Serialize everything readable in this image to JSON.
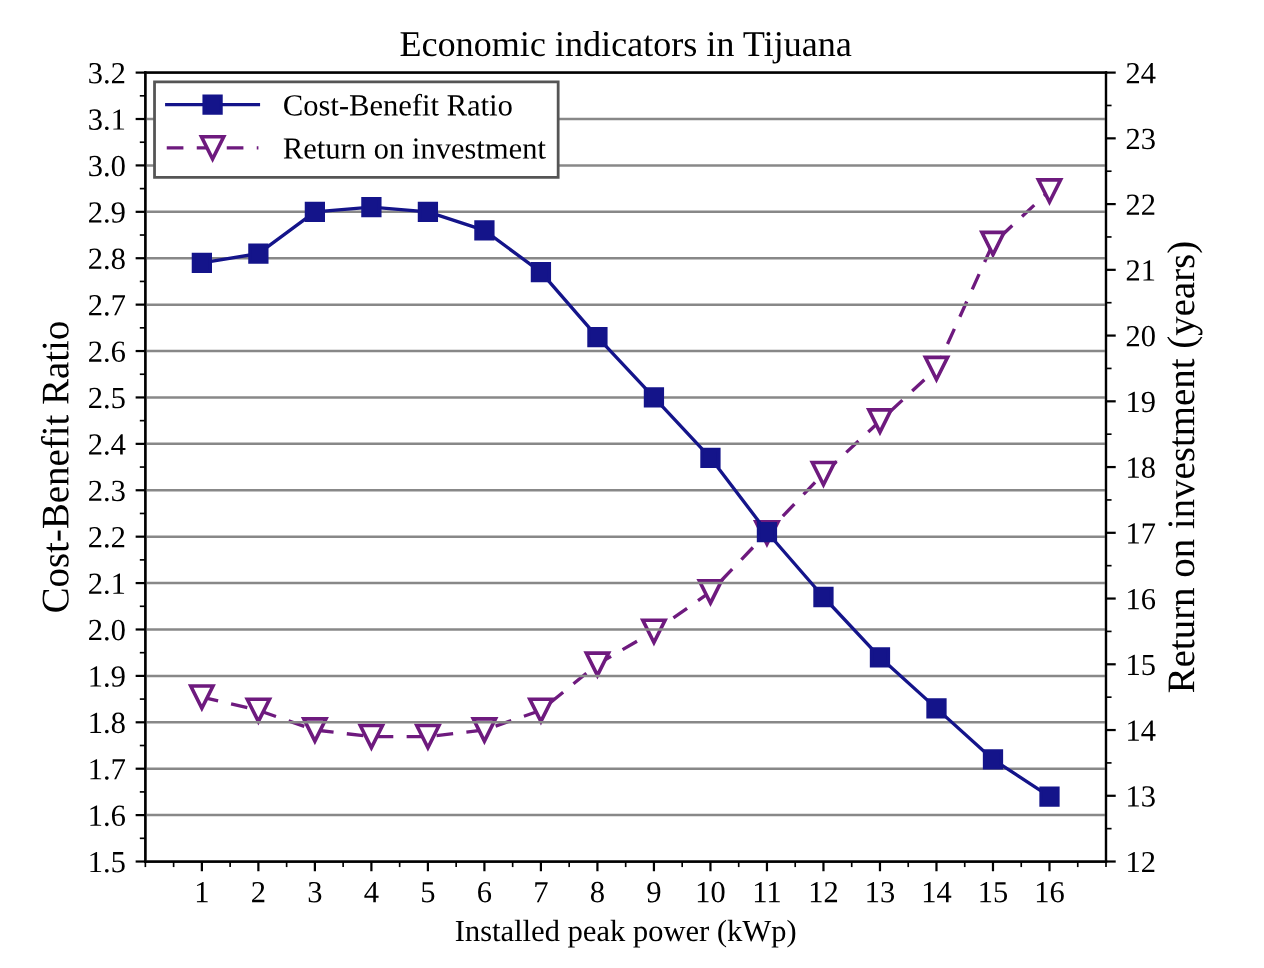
{
  "chart_data": {
    "type": "line",
    "title": "Economic indicators in Tijuana",
    "xlabel": "Installed peak power (kWp)",
    "ylabel": "Cost-Benefit Ratio",
    "y2label": "Return on investment (years)",
    "x": [
      1,
      2,
      3,
      4,
      5,
      6,
      7,
      8,
      9,
      10,
      11,
      12,
      13,
      14,
      15,
      16
    ],
    "series": [
      {
        "name": "Cost-Benefit Ratio",
        "color": "#14148a",
        "marker": "square",
        "line_style": "solid",
        "values": [
          2.79,
          2.81,
          2.9,
          2.91,
          2.9,
          2.86,
          2.77,
          2.63,
          2.5,
          2.37,
          2.21,
          2.07,
          1.94,
          1.83,
          1.72,
          1.64
        ]
      },
      {
        "name": "Return on investment",
        "color": "#6e1a7e",
        "marker": "triangle",
        "line_style": "dashed",
        "axis": "y2",
        "values": [
          14.5,
          14.3,
          14.0,
          13.9,
          13.9,
          14.0,
          14.3,
          15.0,
          15.5,
          16.1,
          17.0,
          17.9,
          18.7,
          19.5,
          21.4,
          22.2
        ]
      }
    ],
    "xlim": [
      0,
      17
    ],
    "xticks": [
      1,
      2,
      3,
      4,
      5,
      6,
      7,
      8,
      9,
      10,
      11,
      12,
      13,
      14,
      15,
      16
    ],
    "ylim": [
      1.5,
      3.2
    ],
    "yticks": [
      {
        "value": 1.5,
        "label": "1.5"
      },
      {
        "value": 1.6,
        "label": "1.6"
      },
      {
        "value": 1.7,
        "label": "1.7"
      },
      {
        "value": 1.8,
        "label": "1.8"
      },
      {
        "value": 1.9,
        "label": "1.9"
      },
      {
        "value": 2.0,
        "label": "2.0"
      },
      {
        "value": 2.1,
        "label": "2.1"
      },
      {
        "value": 2.2,
        "label": "2.2"
      },
      {
        "value": 2.3,
        "label": "2.3"
      },
      {
        "value": 2.4,
        "label": "2.4"
      },
      {
        "value": 2.5,
        "label": "2.5"
      },
      {
        "value": 2.6,
        "label": "2.6"
      },
      {
        "value": 2.7,
        "label": "2.7"
      },
      {
        "value": 2.8,
        "label": "2.8"
      },
      {
        "value": 2.9,
        "label": "2.9"
      },
      {
        "value": 3.0,
        "label": "3.0"
      },
      {
        "value": 3.1,
        "label": "3.1"
      },
      {
        "value": 3.2,
        "label": "3.2"
      }
    ],
    "y2lim": [
      12,
      24
    ],
    "y2ticks": [
      12,
      13,
      14,
      15,
      16,
      17,
      18,
      19,
      20,
      21,
      22,
      23,
      24
    ],
    "grid": "y",
    "legend": "top left"
  }
}
